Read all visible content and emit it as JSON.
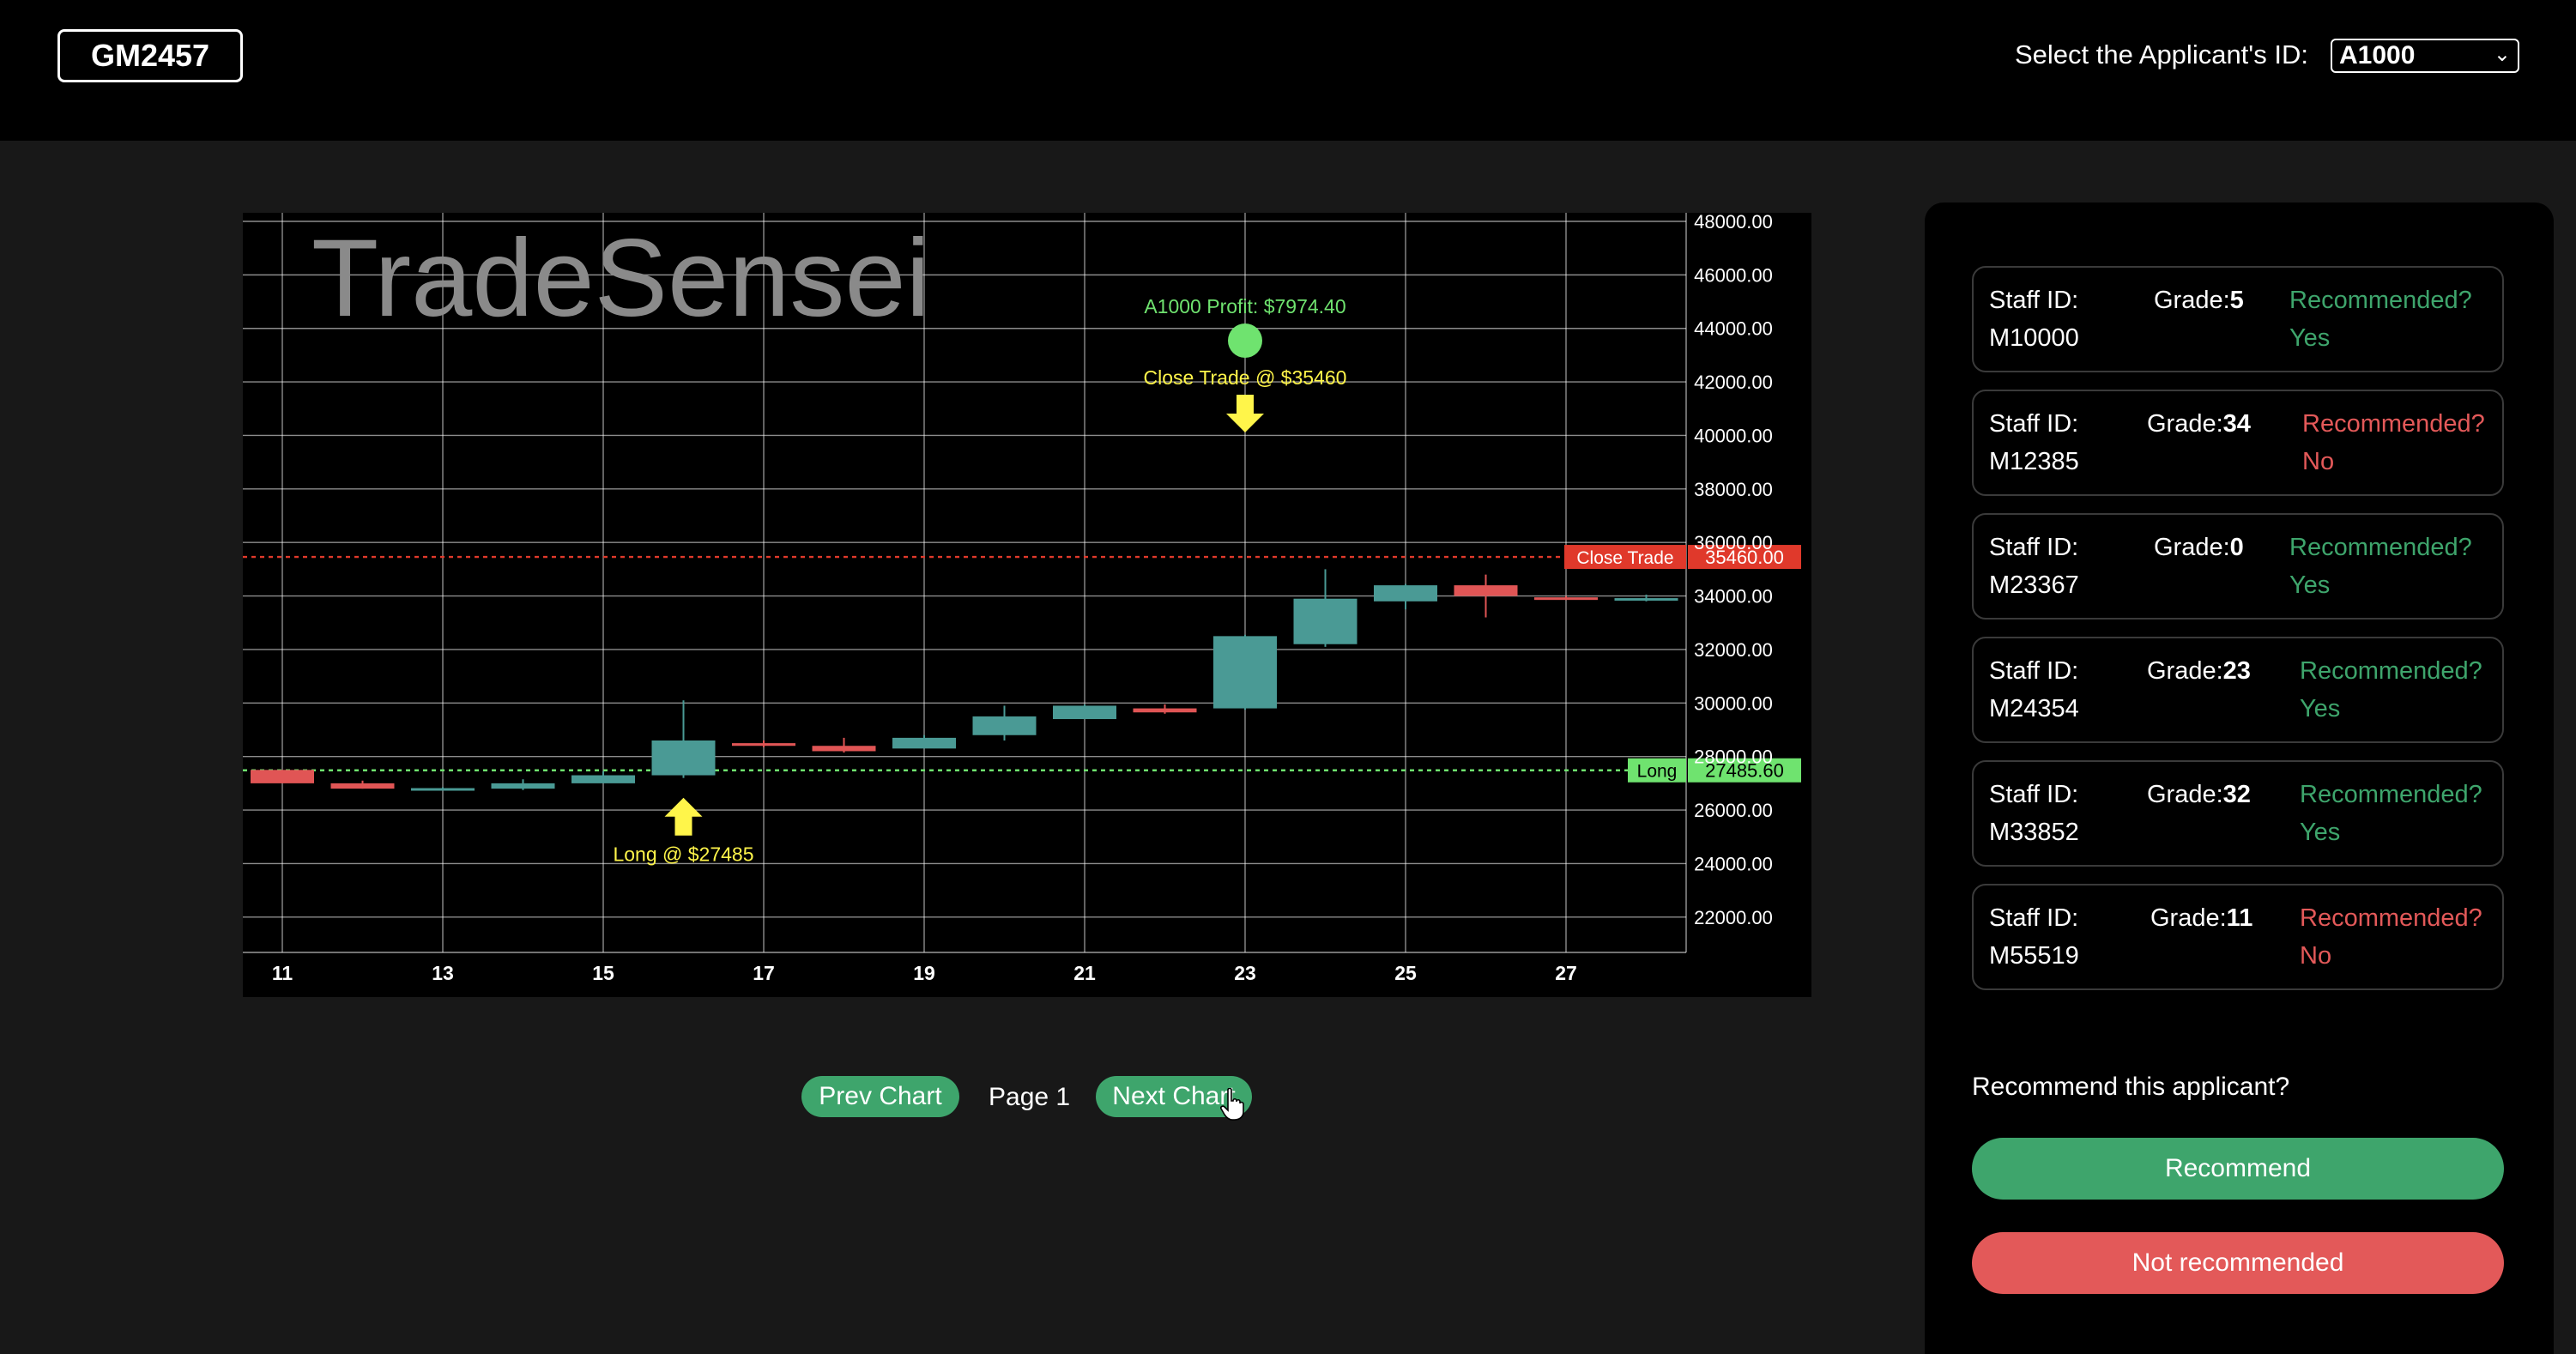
{
  "header": {
    "logo": "GM2457",
    "applicant_label": "Select the Applicant's ID:",
    "applicant_selected": "A1000"
  },
  "chart_data": {
    "type": "candlestick",
    "watermark": "TradeSensei",
    "x_ticks": [
      "11",
      "13",
      "15",
      "17",
      "19",
      "21",
      "23",
      "25",
      "27"
    ],
    "y_ticks": [
      "22000.00",
      "24000.00",
      "26000.00",
      "28000.00",
      "30000.00",
      "32000.00",
      "34000.00",
      "36000.00",
      "38000.00",
      "40000.00",
      "42000.00",
      "44000.00",
      "46000.00",
      "48000.00"
    ],
    "ylim": [
      21000,
      48000
    ],
    "candles": [
      {
        "day": 11,
        "open": 27500,
        "close": 27000,
        "high": 27500,
        "low": 27000
      },
      {
        "day": 12,
        "open": 27000,
        "close": 26800,
        "high": 27100,
        "low": 26800
      },
      {
        "day": 13,
        "open": 26800,
        "close": 26820,
        "high": 26850,
        "low": 26780
      },
      {
        "day": 14,
        "open": 26800,
        "close": 27000,
        "high": 27150,
        "low": 26750
      },
      {
        "day": 15,
        "open": 27000,
        "close": 27300,
        "high": 27450,
        "low": 27000
      },
      {
        "day": 16,
        "open": 27300,
        "close": 28600,
        "high": 30100,
        "low": 27200
      },
      {
        "day": 17,
        "open": 28500,
        "close": 28400,
        "high": 28600,
        "low": 28350
      },
      {
        "day": 18,
        "open": 28400,
        "close": 28200,
        "high": 28700,
        "low": 28150
      },
      {
        "day": 19,
        "open": 28300,
        "close": 28700,
        "high": 28800,
        "low": 28300
      },
      {
        "day": 20,
        "open": 28800,
        "close": 29500,
        "high": 29900,
        "low": 28600
      },
      {
        "day": 21,
        "open": 29400,
        "close": 29900,
        "high": 29950,
        "low": 29400
      },
      {
        "day": 22,
        "open": 29800,
        "close": 29650,
        "high": 29950,
        "low": 29600
      },
      {
        "day": 23,
        "open": 29800,
        "close": 32500,
        "high": 32550,
        "low": 29750
      },
      {
        "day": 24,
        "open": 32200,
        "close": 33900,
        "high": 35000,
        "low": 32100
      },
      {
        "day": 25,
        "open": 33800,
        "close": 34400,
        "high": 34450,
        "low": 33500
      },
      {
        "day": 26,
        "open": 34400,
        "close": 34000,
        "high": 34800,
        "low": 33200
      },
      {
        "day": 27,
        "open": 33950,
        "close": 33900,
        "high": 34000,
        "low": 33850
      },
      {
        "day": 28,
        "open": 33900,
        "close": 33920,
        "high": 34050,
        "low": 33800
      }
    ],
    "close_line": {
      "label": "Close Trade",
      "price": "35460.00",
      "value": 35460
    },
    "long_line": {
      "label": "Long",
      "price": "27485.60",
      "value": 27485.6
    },
    "long_marker": {
      "day": 16,
      "text": "Long @ $27485"
    },
    "close_marker": {
      "day": 23,
      "text": "Close Trade @ $35460"
    },
    "profit_marker": {
      "day": 23,
      "text": "A1000 Profit: $7974.40"
    },
    "colors": {
      "up": "#4a9a95",
      "down": "#e05555",
      "close_line": "#e0392b",
      "long_line": "#6fe36f",
      "arrow": "#fff54a",
      "profit": "#6fe36f",
      "grid": "#ffffff",
      "axis_text": "#ffffff"
    }
  },
  "pager": {
    "prev": "Prev Chart",
    "page": "Page 1",
    "next": "Next Chart"
  },
  "panel": {
    "staff": [
      {
        "label": "Staff ID:",
        "id": "M10000",
        "grade_label": "Grade:",
        "grade": "5",
        "rec_label": "Recommended?",
        "rec": "Yes"
      },
      {
        "label": "Staff ID:",
        "id": "M12385",
        "grade_label": "Grade:",
        "grade": "34",
        "rec_label": "Recommended?",
        "rec": "No"
      },
      {
        "label": "Staff ID:",
        "id": "M23367",
        "grade_label": "Grade:",
        "grade": "0",
        "rec_label": "Recommended?",
        "rec": "Yes"
      },
      {
        "label": "Staff ID:",
        "id": "M24354",
        "grade_label": "Grade:",
        "grade": "23",
        "rec_label": "Recommended?",
        "rec": "Yes"
      },
      {
        "label": "Staff ID:",
        "id": "M33852",
        "grade_label": "Grade:",
        "grade": "32",
        "rec_label": "Recommended?",
        "rec": "Yes"
      },
      {
        "label": "Staff ID:",
        "id": "M55519",
        "grade_label": "Grade:",
        "grade": "11",
        "rec_label": "Recommended?",
        "rec": "No"
      }
    ],
    "question": "Recommend this applicant?",
    "recommend": "Recommend",
    "not_recommend": "Not recommended",
    "colors": {
      "yes": "#3ea56c",
      "no": "#e35959"
    }
  }
}
